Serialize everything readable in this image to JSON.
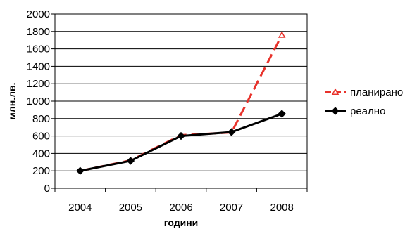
{
  "chart_data": {
    "type": "line",
    "title": "",
    "xlabel": "години",
    "ylabel": "млн.лв.",
    "categories": [
      "2004",
      "2005",
      "2006",
      "2007",
      "2008"
    ],
    "ylim": [
      0,
      2000
    ],
    "y_ticks": [
      0,
      200,
      400,
      600,
      800,
      1000,
      1200,
      1400,
      1600,
      1800,
      2000
    ],
    "grid": true,
    "legend_position": "right",
    "series": [
      {
        "name": "планирано",
        "values": [
          200,
          320,
          610,
          640,
          1760
        ],
        "color": "#e8322b",
        "style": "dashed",
        "marker": "triangle-open"
      },
      {
        "name": "реално",
        "values": [
          200,
          315,
          600,
          645,
          855
        ],
        "color": "#000000",
        "style": "solid",
        "marker": "diamond"
      }
    ]
  }
}
